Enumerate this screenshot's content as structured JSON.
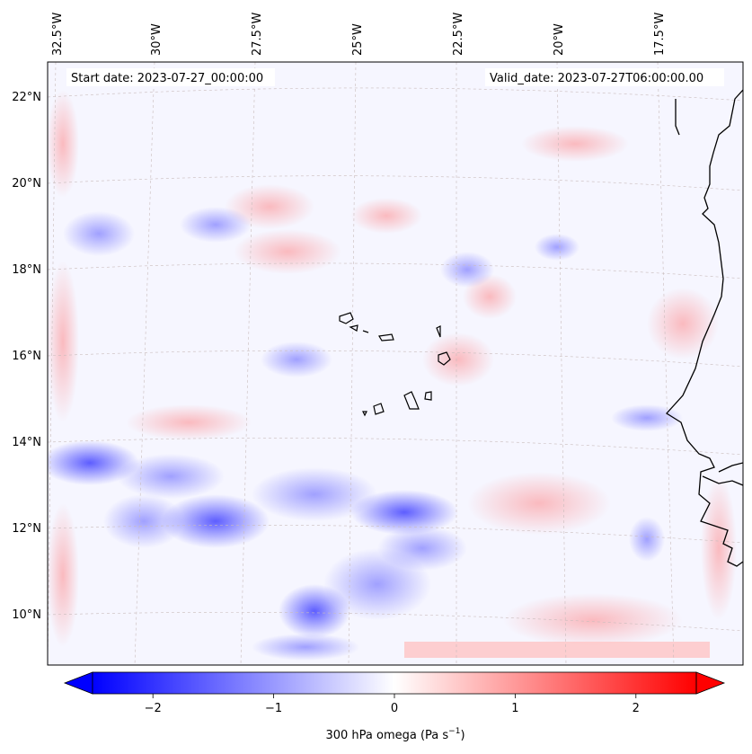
{
  "map": {
    "start_date": "Start date: 2023-07-27_00:00:00",
    "valid_date": "Valid_date: 2023-07-27T06:00:00.00",
    "lon_labels": [
      "32.5°W",
      "30°W",
      "27.5°W",
      "25°W",
      "22.5°W",
      "20°W",
      "17.5°W"
    ],
    "lat_labels": [
      "22°N",
      "20°N",
      "18°N",
      "16°N",
      "14°N",
      "12°N",
      "10°N"
    ]
  },
  "colorbar": {
    "tick_labels": [
      "−2",
      "−1",
      "0",
      "1",
      "2"
    ],
    "ticks": [
      -2,
      -1,
      0,
      1,
      2
    ],
    "range": [
      -2.5,
      2.5
    ],
    "label_prefix": "300 hPa omega (Pa s",
    "label_sup": "−1",
    "label_suffix": ")",
    "colors": {
      "negative": "#0000ff",
      "zero": "#ffffff",
      "positive": "#ff0000"
    }
  }
}
